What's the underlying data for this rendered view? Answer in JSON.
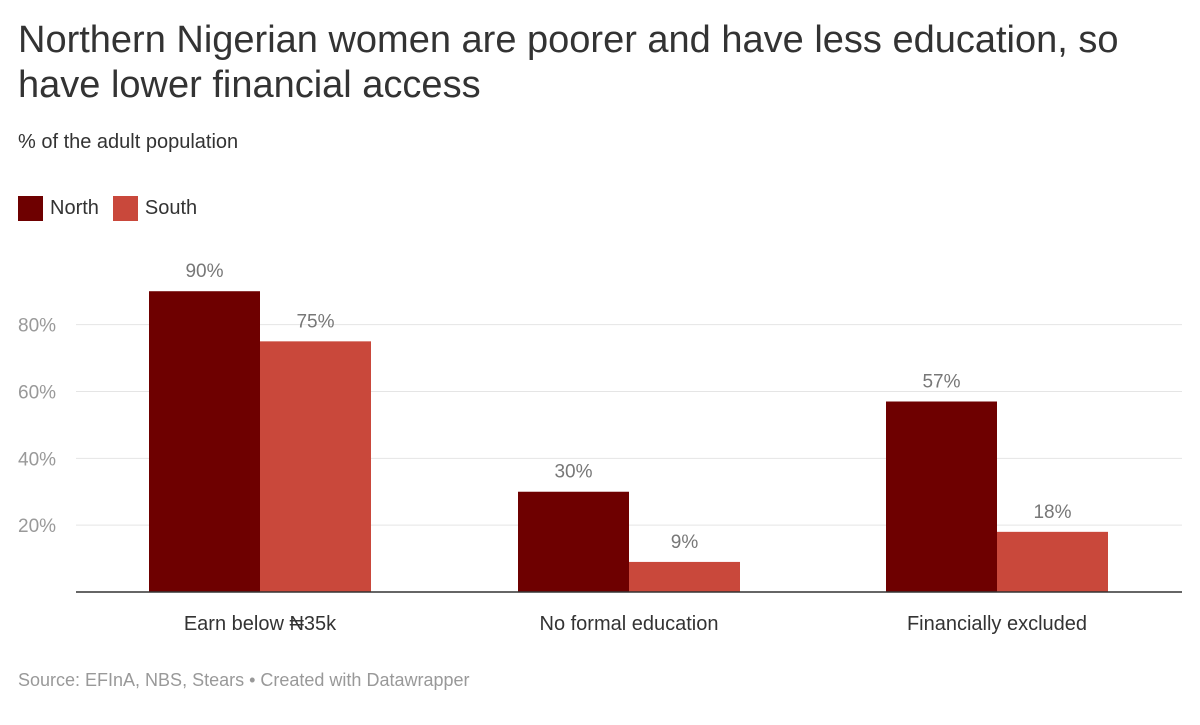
{
  "title": "Northern Nigerian women are poorer and have less education, so have lower financial access",
  "subtitle": "% of the adult population",
  "source": "Source: EFInA, NBS, Stears • Created with Datawrapper",
  "colors": {
    "north": "#6e0000",
    "south": "#c9483b",
    "grid": "#e5e5e5",
    "baseline": "#333333"
  },
  "chart_data": {
    "type": "bar",
    "categories": [
      "Earn below ₦35k",
      "No formal education",
      "Financially excluded"
    ],
    "series": [
      {
        "name": "North",
        "values": [
          90,
          30,
          57
        ],
        "labels": [
          "90%",
          "30%",
          "57%"
        ]
      },
      {
        "name": "South",
        "values": [
          75,
          9,
          18
        ],
        "labels": [
          "75%",
          "9%",
          "18%"
        ]
      }
    ],
    "yticks": [
      20,
      40,
      60,
      80
    ],
    "ytick_labels": [
      "20%",
      "40%",
      "60%",
      "80%"
    ],
    "ylim": [
      0,
      100
    ],
    "grid": true,
    "legend": "top-left"
  }
}
